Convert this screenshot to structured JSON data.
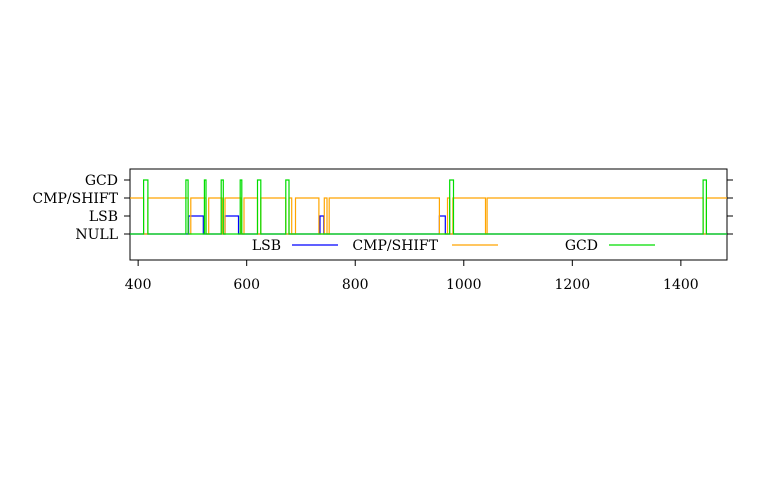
{
  "chart_data": {
    "type": "line",
    "xlim": [
      385,
      1485
    ],
    "xticks": [
      "400",
      "600",
      "800",
      "1000",
      "1200",
      "1400"
    ],
    "states": [
      "NULL",
      "LSB",
      "CMP/SHIFT",
      "GCD"
    ],
    "legend": {
      "placement": "bottom-inside",
      "orientation": "horizontal"
    },
    "grid": false,
    "series": [
      {
        "name": "LSB",
        "color": "#0000ff",
        "steps": [
          [
            385,
            0
          ],
          [
            493,
            1
          ],
          [
            520,
            0
          ],
          [
            560,
            1
          ],
          [
            585,
            0
          ],
          [
            735,
            1
          ],
          [
            742,
            0
          ],
          [
            955,
            1
          ],
          [
            966,
            0
          ],
          [
            1485,
            0
          ]
        ]
      },
      {
        "name": "CMP/SHIFT",
        "color": "#ffa500",
        "steps": [
          [
            385,
            2
          ],
          [
            410,
            0
          ],
          [
            418,
            2
          ],
          [
            492,
            0
          ],
          [
            497,
            2
          ],
          [
            525,
            0
          ],
          [
            530,
            2
          ],
          [
            555,
            0
          ],
          [
            560,
            2
          ],
          [
            590,
            0
          ],
          [
            595,
            2
          ],
          [
            620,
            0
          ],
          [
            626,
            2
          ],
          [
            672,
            0
          ],
          [
            678,
            2
          ],
          [
            683,
            0
          ],
          [
            690,
            2
          ],
          [
            733,
            0
          ],
          [
            743,
            2
          ],
          [
            748,
            0
          ],
          [
            752,
            2
          ],
          [
            955,
            0
          ],
          [
            970,
            2
          ],
          [
            974,
            0
          ],
          [
            980,
            2
          ],
          [
            1040,
            0
          ],
          [
            1043,
            2
          ],
          [
            1441,
            0
          ],
          [
            1447,
            2
          ],
          [
            1485,
            2
          ]
        ]
      },
      {
        "name": "GCD",
        "color": "#00dd00",
        "steps": [
          [
            385,
            0
          ],
          [
            410,
            3
          ],
          [
            418,
            0
          ],
          [
            488,
            3
          ],
          [
            492,
            0
          ],
          [
            522,
            3
          ],
          [
            525,
            0
          ],
          [
            553,
            3
          ],
          [
            557,
            0
          ],
          [
            588,
            3
          ],
          [
            591,
            0
          ],
          [
            620,
            3
          ],
          [
            626,
            0
          ],
          [
            672,
            3
          ],
          [
            678,
            0
          ],
          [
            974,
            3
          ],
          [
            981,
            0
          ],
          [
            1441,
            3
          ],
          [
            1447,
            0
          ],
          [
            1485,
            0
          ]
        ]
      }
    ]
  }
}
